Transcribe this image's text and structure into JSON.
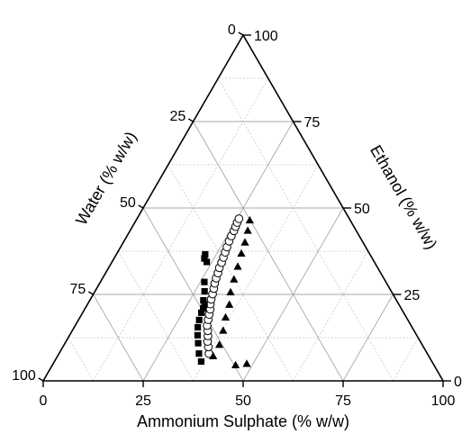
{
  "chart_data": {
    "type": "scatter",
    "subtype": "ternary",
    "axes": {
      "bottom": {
        "label": "Ammonium Sulphate (% w/w)",
        "ticks": [
          "0",
          "25",
          "50",
          "75",
          "100"
        ]
      },
      "left": {
        "label": "Water (% w/w)",
        "ticks": [
          "0",
          "25",
          "50",
          "75",
          "100"
        ]
      },
      "right": {
        "label": "Ethanol (% w/w)",
        "ticks": [
          "0",
          "25",
          "50",
          "75",
          "100"
        ]
      }
    },
    "grid": true,
    "series": [
      {
        "marker": "circle-open",
        "points": [
          {
            "x": 37.5,
            "y": 7.9
          },
          {
            "x": 36.4,
            "y": 9.8
          },
          {
            "x": 35.4,
            "y": 11.4
          },
          {
            "x": 34.7,
            "y": 13.0
          },
          {
            "x": 33.9,
            "y": 14.5
          },
          {
            "x": 33.0,
            "y": 16.0
          },
          {
            "x": 32.4,
            "y": 17.7
          },
          {
            "x": 31.9,
            "y": 19.2
          },
          {
            "x": 31.4,
            "y": 20.7
          },
          {
            "x": 30.7,
            "y": 22.2
          },
          {
            "x": 30.2,
            "y": 23.6
          },
          {
            "x": 29.8,
            "y": 25.1
          },
          {
            "x": 29.3,
            "y": 26.7
          },
          {
            "x": 28.8,
            "y": 28.2
          },
          {
            "x": 28.4,
            "y": 29.7
          },
          {
            "x": 28.1,
            "y": 31.2
          },
          {
            "x": 27.7,
            "y": 32.7
          },
          {
            "x": 27.5,
            "y": 34.2
          },
          {
            "x": 27.2,
            "y": 35.7
          },
          {
            "x": 26.9,
            "y": 37.2
          },
          {
            "x": 26.6,
            "y": 38.7
          },
          {
            "x": 26.3,
            "y": 40.4
          },
          {
            "x": 26.1,
            "y": 41.9
          },
          {
            "x": 26.0,
            "y": 43.4
          },
          {
            "x": 25.8,
            "y": 44.6
          },
          {
            "x": 25.6,
            "y": 45.8
          },
          {
            "x": 25.5,
            "y": 46.9
          }
        ]
      },
      {
        "marker": "square-filled",
        "points": [
          {
            "x": 36.7,
            "y": 5.6
          },
          {
            "x": 35.0,
            "y": 7.9
          },
          {
            "x": 33.3,
            "y": 10.9
          },
          {
            "x": 32.0,
            "y": 13.2
          },
          {
            "x": 30.9,
            "y": 15.5
          },
          {
            "x": 30.2,
            "y": 17.6
          },
          {
            "x": 29.7,
            "y": 19.7
          },
          {
            "x": 29.5,
            "y": 21.0
          },
          {
            "x": 29.3,
            "y": 22.1
          },
          {
            "x": 28.4,
            "y": 23.3
          },
          {
            "x": 27.4,
            "y": 25.9
          },
          {
            "x": 26.0,
            "y": 28.6
          },
          {
            "x": 23.7,
            "y": 34.4
          },
          {
            "x": 22.6,
            "y": 35.4
          },
          {
            "x": 22.2,
            "y": 36.6
          }
        ]
      },
      {
        "marker": "triangle-filled",
        "points": [
          {
            "x": 48.4,
            "y": 5.0
          },
          {
            "x": 45.8,
            "y": 4.6
          },
          {
            "x": 38.9,
            "y": 7.2
          },
          {
            "x": 38.8,
            "y": 10.5
          },
          {
            "x": 37.7,
            "y": 14.6
          },
          {
            "x": 36.4,
            "y": 18.4
          },
          {
            "x": 35.5,
            "y": 22.1
          },
          {
            "x": 34.0,
            "y": 25.7
          },
          {
            "x": 33.0,
            "y": 29.4
          },
          {
            "x": 32.1,
            "y": 33.1
          },
          {
            "x": 31.1,
            "y": 36.9
          },
          {
            "x": 30.4,
            "y": 40.1
          },
          {
            "x": 29.4,
            "y": 43.5
          },
          {
            "x": 28.4,
            "y": 46.5
          }
        ]
      }
    ]
  }
}
